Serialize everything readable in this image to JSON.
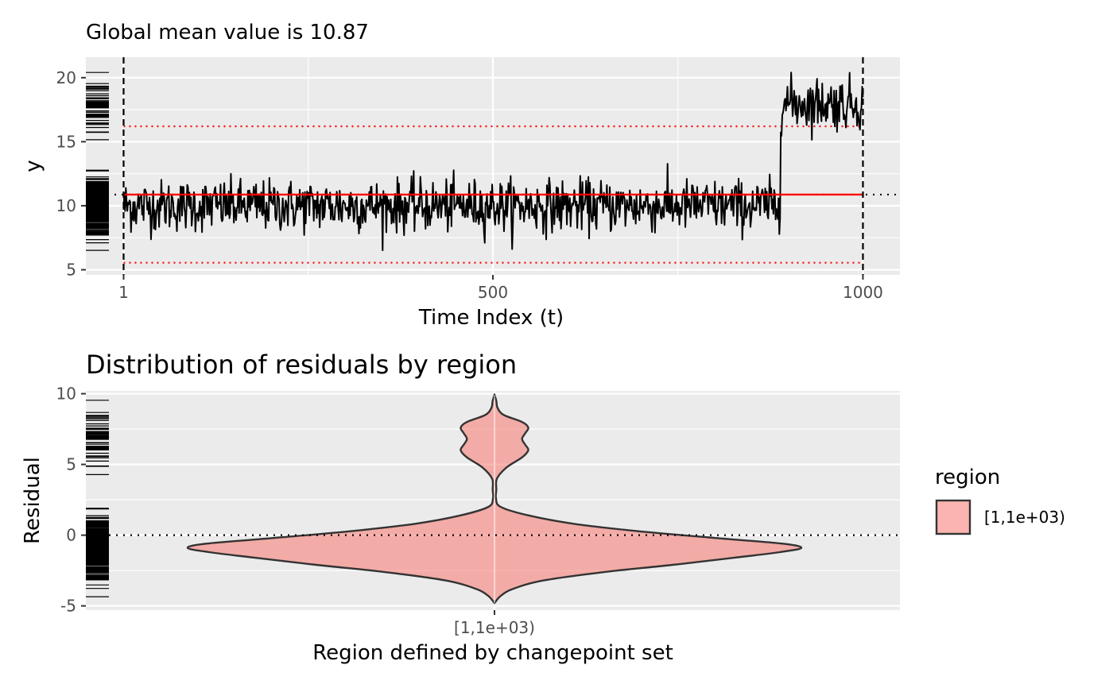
{
  "chart_data": [
    {
      "type": "line",
      "title": "Global mean value is 10.87",
      "xlabel": "Time Index (t)",
      "ylabel": "y",
      "xlim": [
        -50,
        1050
      ],
      "ylim": [
        4.6,
        21.6
      ],
      "x_ticks": [
        1,
        500,
        1000
      ],
      "x_tick_labels": [
        "1",
        "500",
        "1000"
      ],
      "y_ticks": [
        5,
        10,
        15,
        20
      ],
      "y_tick_labels": [
        "5",
        "10",
        "15",
        "20"
      ],
      "global_mean": 10.87,
      "upper_bound": 16.2,
      "lower_bound": 5.55,
      "changepoints": [
        1,
        1000
      ],
      "regime_means": [
        {
          "from": 1,
          "to": 1000,
          "mean": 10.87
        }
      ],
      "series": [
        {
          "name": "y",
          "segments": [
            {
              "x_start": 1,
              "x_end": 888,
              "mean": 10.0,
              "sd": 1.0
            },
            {
              "x_start": 889,
              "x_end": 1000,
              "mean": 18.0,
              "sd": 1.0
            }
          ]
        }
      ],
      "grid": true
    },
    {
      "type": "violin",
      "title": "Distribution of residuals by region",
      "xlabel": "Region defined by changepoint set",
      "ylabel": "Residual",
      "categories": [
        "[1,1e+03)"
      ],
      "ylim": [
        -5.3,
        10.2
      ],
      "y_ticks": [
        -5,
        0,
        5,
        10
      ],
      "y_tick_labels": [
        "-5",
        "0",
        "5",
        "10"
      ],
      "reference_line": 0,
      "density": {
        "y": [
          -4.8,
          -4.3,
          -3.8,
          -3.2,
          -2.6,
          -2.1,
          -1.6,
          -1.2,
          -0.9,
          -0.6,
          -0.2,
          0.3,
          0.8,
          1.4,
          2.0,
          2.6,
          3.2,
          4.0,
          4.8,
          5.5,
          6.0,
          6.4,
          6.8,
          7.2,
          7.6,
          8.0,
          8.5,
          9.0,
          9.5,
          9.9
        ],
        "width": [
          0.0,
          0.02,
          0.06,
          0.16,
          0.36,
          0.58,
          0.78,
          0.93,
          1.0,
          0.94,
          0.72,
          0.46,
          0.26,
          0.11,
          0.02,
          0.005,
          0.006,
          0.008,
          0.04,
          0.09,
          0.11,
          0.1,
          0.09,
          0.1,
          0.11,
          0.09,
          0.03,
          0.01,
          0.006,
          0.0
        ]
      },
      "legend": {
        "title": "region",
        "position": "right",
        "entries": [
          {
            "label": "[1,1e+03)",
            "color": "#f8766d"
          }
        ]
      },
      "grid": true
    }
  ],
  "colors": {
    "panel_bg": "#ebebeb",
    "series": "#000000",
    "mean_line": "#ff0000",
    "violin_fill": "#f8766d",
    "violin_stroke": "#333333"
  }
}
